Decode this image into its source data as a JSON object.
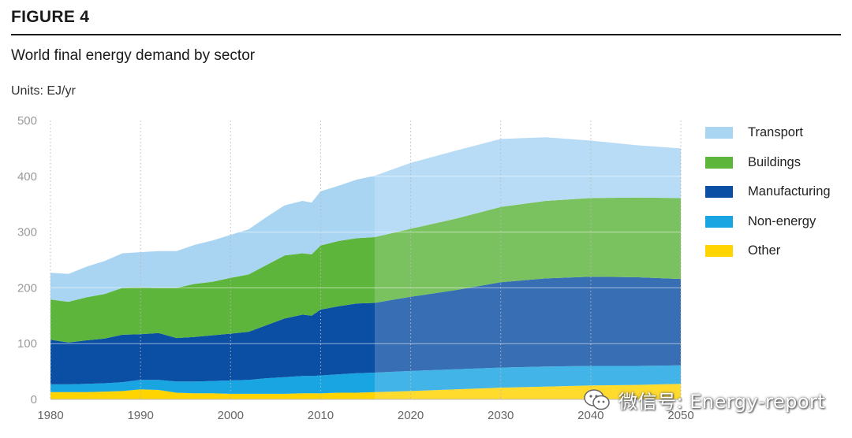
{
  "figure_label": "FIGURE 4",
  "subtitle": "World final energy demand by sector",
  "units": "Units: EJ/yr",
  "watermark": "微信号: Energy-report",
  "colors": {
    "Transport": "#a9d5f3",
    "Buildings": "#5db53c",
    "Manufacturing": "#0b4fa4",
    "Non-energy": "#19a4e2",
    "Other": "#ffd400"
  },
  "chart_data": {
    "type": "area",
    "stacked": true,
    "title": "World final energy demand by sector",
    "ylabel": "Units: EJ/yr",
    "xlabel": "",
    "xlim": [
      1980,
      2050
    ],
    "ylim": [
      0,
      500
    ],
    "x_ticks": [
      1980,
      1990,
      2000,
      2010,
      2020,
      2030,
      2040,
      2050
    ],
    "y_ticks": [
      0,
      100,
      200,
      300,
      400,
      500
    ],
    "grid": "dotted vertical and horizontal",
    "forecast_start": 2016,
    "legend_position": "right",
    "legend_order": [
      "Transport",
      "Buildings",
      "Manufacturing",
      "Non-energy",
      "Other"
    ],
    "x": [
      1980,
      1982,
      1984,
      1986,
      1988,
      1990,
      1992,
      1994,
      1996,
      1998,
      2000,
      2002,
      2004,
      2006,
      2008,
      2009,
      2010,
      2012,
      2014,
      2016,
      2020,
      2025,
      2030,
      2035,
      2040,
      2045,
      2050
    ],
    "series": [
      {
        "name": "Other",
        "values": [
          13,
          13,
          13,
          14,
          15,
          18,
          17,
          12,
          11,
          11,
          10,
          10,
          10,
          10,
          11,
          11,
          11,
          12,
          12,
          13,
          15,
          18,
          21,
          23,
          25,
          26,
          28
        ]
      },
      {
        "name": "Non-energy",
        "values": [
          14,
          14,
          15,
          15,
          16,
          17,
          18,
          20,
          21,
          22,
          24,
          25,
          28,
          30,
          31,
          31,
          32,
          33,
          35,
          35,
          36,
          36,
          36,
          36,
          35,
          34,
          33
        ]
      },
      {
        "name": "Manufacturing",
        "values": [
          80,
          75,
          78,
          80,
          85,
          82,
          84,
          78,
          80,
          82,
          84,
          86,
          95,
          105,
          110,
          108,
          118,
          122,
          125,
          125,
          133,
          142,
          153,
          158,
          160,
          159,
          155
        ]
      },
      {
        "name": "Buildings",
        "values": [
          72,
          73,
          77,
          80,
          84,
          84,
          81,
          90,
          95,
          96,
          100,
          103,
          108,
          113,
          110,
          110,
          115,
          117,
          117,
          118,
          122,
          128,
          135,
          139,
          141,
          143,
          145
        ]
      },
      {
        "name": "Transport",
        "values": [
          48,
          50,
          55,
          59,
          62,
          63,
          66,
          66,
          70,
          74,
          77,
          81,
          86,
          90,
          94,
          93,
          97,
          99,
          105,
          110,
          118,
          122,
          122,
          114,
          103,
          94,
          89
        ]
      }
    ]
  }
}
